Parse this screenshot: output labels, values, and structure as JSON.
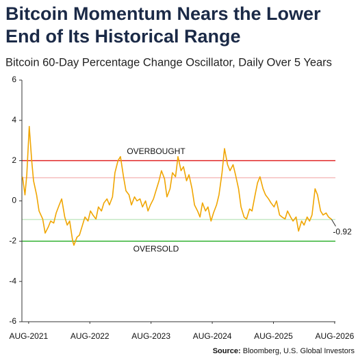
{
  "chart_data": {
    "type": "line",
    "title": [
      "Bitcoin Momentum Nears the Lower",
      "End of Its Historical Range"
    ],
    "subtitle": "Bitcoin 60-Day Percentage Change Oscillator, Daily Over 5 Years",
    "source_label": "Source:",
    "source": "Bloomberg, U.S. Global Investors",
    "x": [
      2021.48,
      2021.52,
      2021.55,
      2021.59,
      2021.63,
      2021.66,
      2021.71,
      2021.75,
      2021.81,
      2021.85,
      2021.9,
      2021.94,
      2021.99,
      2022.03,
      2022.08,
      2022.12,
      2022.17,
      2022.21,
      2022.25,
      2022.3,
      2022.32,
      2022.37,
      2022.41,
      2022.46,
      2022.5,
      2022.55,
      2022.59,
      2022.63,
      2022.68,
      2022.72,
      2022.77,
      2022.81,
      2022.86,
      2022.9,
      2022.95,
      2022.99,
      2023.04,
      2023.08,
      2023.13,
      2023.17,
      2023.22,
      2023.26,
      2023.31,
      2023.35,
      2023.4,
      2023.44,
      2023.49,
      2023.53,
      2023.57,
      2023.62,
      2023.66,
      2023.71,
      2023.75,
      2023.8,
      2023.84,
      2023.89,
      2023.93,
      2023.98,
      2024.02,
      2024.07,
      2024.11,
      2024.16,
      2024.2,
      2024.25,
      2024.29,
      2024.34,
      2024.38,
      2024.42,
      2024.47,
      2024.51,
      2024.56,
      2024.6,
      2024.65,
      2024.69,
      2024.74,
      2024.78,
      2024.83,
      2024.87,
      2024.92,
      2024.96,
      2025.01,
      2025.05,
      2025.1,
      2025.14,
      2025.19,
      2025.23,
      2025.28,
      2025.32,
      2025.36,
      2025.41,
      2025.45,
      2025.5,
      2025.54,
      2025.59,
      2025.63,
      2025.68,
      2025.72,
      2025.77,
      2025.81,
      2025.86,
      2025.9,
      2025.95,
      2025.99,
      2026.04,
      2026.08,
      2026.13,
      2026.17,
      2026.21,
      2026.26,
      2026.3,
      2026.35,
      2026.39,
      2026.44,
      2026.48,
      2026.53
    ],
    "series": [
      {
        "name": "Bitcoin 60-Day Percentage Change Oscillator",
        "color": "#f0a500",
        "values": [
          1.2,
          0.3,
          1.3,
          3.7,
          2.0,
          1.0,
          0.3,
          -0.5,
          -0.9,
          -1.6,
          -1.3,
          -1.0,
          -1.1,
          -0.6,
          -0.2,
          0.1,
          -0.8,
          -1.2,
          -1.0,
          -2.0,
          -2.2,
          -1.8,
          -1.7,
          -1.2,
          -0.8,
          -1.0,
          -0.5,
          -0.7,
          -0.9,
          -0.3,
          -0.5,
          -0.1,
          0.1,
          -0.2,
          0.2,
          1.4,
          2.0,
          2.2,
          1.2,
          0.5,
          0.3,
          -0.2,
          0.2,
          0.0,
          0.1,
          -0.3,
          0.0,
          -0.5,
          -0.2,
          0.1,
          0.5,
          1.0,
          1.5,
          1.1,
          0.2,
          0.6,
          1.4,
          1.2,
          2.2,
          1.5,
          1.7,
          1.0,
          1.3,
          0.6,
          -0.2,
          -0.5,
          -0.8,
          -0.1,
          -0.5,
          -0.3,
          -1.0,
          -0.6,
          -0.2,
          0.3,
          1.4,
          2.6,
          1.8,
          1.5,
          1.8,
          1.3,
          0.6,
          -0.3,
          -0.8,
          -0.9,
          -0.4,
          -0.5,
          0.3,
          0.9,
          1.2,
          0.6,
          0.3,
          0.1,
          -0.1,
          -0.3,
          0.0,
          -0.7,
          -0.8,
          -0.9,
          -0.5,
          -0.8,
          -1.0,
          -0.8,
          -1.5,
          -1.0,
          -1.2,
          -0.8,
          -1.0,
          -0.7,
          0.6,
          0.3,
          -0.5,
          -0.7,
          -0.6,
          -0.8,
          -0.92
        ],
        "last_label": "-0.92"
      }
    ],
    "reference_lines": [
      {
        "value": 2,
        "color": "#e02424",
        "label": "OVERBOUGHT"
      },
      {
        "value": 1.15,
        "color": "#f5bcbc"
      },
      {
        "value": -0.92,
        "color": "#c4e8c4"
      },
      {
        "value": -2,
        "color": "#2fb02f",
        "label": "OVERSOLD"
      }
    ],
    "xlim": [
      2021.47,
      2026.76
    ],
    "xticks": [
      {
        "value": 2021.58,
        "label": "AUG-2021"
      },
      {
        "value": 2022.58,
        "label": "AUG-2022"
      },
      {
        "value": 2023.58,
        "label": "AUG-2023"
      },
      {
        "value": 2024.58,
        "label": "AUG-2024"
      },
      {
        "value": 2025.58,
        "label": "AUG-2025"
      },
      {
        "value": 2026.58,
        "label": "AUG-2026"
      }
    ],
    "ylim": [
      -6,
      6
    ],
    "yticks": [
      -6,
      -4,
      -2,
      0,
      2,
      4,
      6
    ],
    "grid": false
  }
}
